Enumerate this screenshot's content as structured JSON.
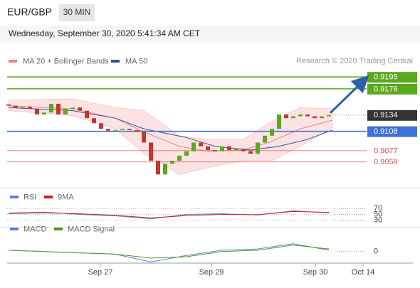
{
  "header": {
    "symbol": "EUR/GBP",
    "timeframe": "30 MIN",
    "datetime": "Wednesday, September 30, 2020 5:41:34 AM CET",
    "credit": "Research © 2020 Trading Central"
  },
  "chart_data": [
    {
      "type": "candlestick",
      "x": [
        0,
        1,
        2,
        3,
        4,
        5,
        6,
        7,
        8,
        9,
        10,
        11,
        12,
        13,
        14,
        15,
        16,
        17,
        18,
        19,
        20,
        21,
        22,
        23,
        24,
        25,
        26,
        27,
        28,
        29,
        30,
        31,
        32,
        33,
        34,
        35,
        36,
        37,
        38,
        39,
        40,
        41,
        42,
        43,
        44,
        45
      ],
      "open": [
        0.9151,
        0.9149,
        0.9146,
        0.9147,
        0.9144,
        0.9135,
        0.9138,
        0.9152,
        0.9135,
        0.9144,
        0.9146,
        0.9141,
        0.9129,
        0.9121,
        0.9112,
        0.9109,
        0.911,
        0.9112,
        0.911,
        0.9107,
        0.909,
        0.9061,
        0.9039,
        0.9056,
        0.9061,
        0.9069,
        0.9076,
        0.909,
        0.9084,
        0.9078,
        0.9076,
        0.9084,
        0.9078,
        0.908,
        0.9076,
        0.9072,
        0.909,
        0.9101,
        0.9112,
        0.9135,
        0.9129,
        0.9132,
        0.9135,
        0.9132,
        0.9129,
        0.9132
      ],
      "close": [
        0.9149,
        0.9146,
        0.9147,
        0.9144,
        0.9135,
        0.9138,
        0.9152,
        0.9135,
        0.9144,
        0.9146,
        0.9141,
        0.9129,
        0.9121,
        0.9112,
        0.9109,
        0.911,
        0.9112,
        0.911,
        0.9107,
        0.909,
        0.9061,
        0.9039,
        0.9056,
        0.9061,
        0.9069,
        0.9076,
        0.909,
        0.9084,
        0.9078,
        0.9076,
        0.9084,
        0.9078,
        0.908,
        0.9076,
        0.9072,
        0.909,
        0.9101,
        0.9112,
        0.9135,
        0.9129,
        0.9132,
        0.9135,
        0.9132,
        0.9129,
        0.9132,
        0.9134
      ],
      "up_color": "#5aa81e",
      "down_color": "#c0392b",
      "series": [
        {
          "name": "MA 20 + Bollinger Bands",
          "color": "#f08080",
          "x": [
            0,
            9,
            15,
            19,
            24,
            28,
            33,
            37,
            41,
            45.5
          ],
          "values": [
            0.9149,
            0.9144,
            0.9129,
            0.9107,
            0.9084,
            0.9076,
            0.9078,
            0.9092,
            0.9112,
            0.9126
          ],
          "upper": [
            0.9158,
            0.916,
            0.9146,
            0.9141,
            0.9101,
            0.9095,
            0.9095,
            0.9124,
            0.9146,
            0.9144
          ],
          "lower": [
            0.9141,
            0.9133,
            0.9112,
            0.9073,
            0.9039,
            0.905,
            0.9061,
            0.9061,
            0.9084,
            0.9114
          ]
        },
        {
          "name": "MA 50",
          "color": "#2b55a0",
          "x": [
            0,
            9,
            15,
            19,
            25,
            29,
            34,
            38,
            42,
            45.5
          ],
          "values": [
            0.9146,
            0.9141,
            0.9129,
            0.9112,
            0.9098,
            0.9084,
            0.9078,
            0.9084,
            0.9095,
            0.911
          ]
        }
      ],
      "levels": [
        {
          "value": 0.9195,
          "color": "#5aa81e",
          "line": "solid",
          "label": "box"
        },
        {
          "value": 0.9176,
          "color": "#5aa81e",
          "line": "solid",
          "label": "box"
        },
        {
          "value": 0.9134,
          "color": "#333333",
          "line": "dotted",
          "label": "box"
        },
        {
          "value": 0.9108,
          "color": "#3f6fd8",
          "line": "solid",
          "label": "box"
        },
        {
          "value": 0.9077,
          "color": "#e05050",
          "line": "thin",
          "label": "text"
        },
        {
          "value": 0.9059,
          "color": "#e05050",
          "line": "thin",
          "label": "text"
        }
      ],
      "ylim": [
        0.902,
        0.921
      ],
      "xlim": [
        -0.2,
        56.8
      ],
      "xticks": [
        {
          "value": 12.9,
          "label": "Sep 27"
        },
        {
          "value": 28.5,
          "label": "Sep 29"
        },
        {
          "value": 43.1,
          "label": "Sep 30"
        },
        {
          "value": 49.8,
          "label": "Oct 14"
        }
      ]
    },
    {
      "type": "line",
      "x": [
        0,
        5,
        10,
        15,
        20,
        25,
        30,
        35,
        40,
        45
      ],
      "series": [
        {
          "name": "RSI",
          "color": "#5b7fd6",
          "values": [
            55,
            58,
            50,
            45,
            35,
            50,
            52,
            48,
            62,
            55
          ]
        },
        {
          "name": "9MA",
          "color": "#cc2020",
          "values": [
            53,
            55,
            52,
            47,
            38,
            46,
            50,
            49,
            60,
            57
          ]
        }
      ],
      "ylim": [
        10,
        90
      ],
      "yticks": [
        70,
        50,
        30
      ],
      "xlim": [
        -0.2,
        56.8
      ]
    },
    {
      "type": "line",
      "x": [
        0,
        5,
        10,
        15,
        20,
        25,
        30,
        35,
        40,
        45
      ],
      "series": [
        {
          "name": "MACD",
          "color": "#5b7fd6",
          "values": [
            0.0001,
            0.0,
            -0.0001,
            -0.0002,
            -0.0008,
            -0.0003,
            0.0001,
            0.0002,
            0.0006,
            0.0001
          ]
        },
        {
          "name": "MACD Signal",
          "color": "#4f9a1a",
          "values": [
            0.0001,
            0.0,
            -0.0001,
            -0.0002,
            -0.0005,
            -0.0004,
            0.0,
            0.0001,
            0.0005,
            0.0002
          ]
        }
      ],
      "ylim": [
        -0.001,
        0.0013
      ],
      "yticks": [
        0
      ],
      "xlim": [
        -0.2,
        56.8
      ]
    }
  ]
}
